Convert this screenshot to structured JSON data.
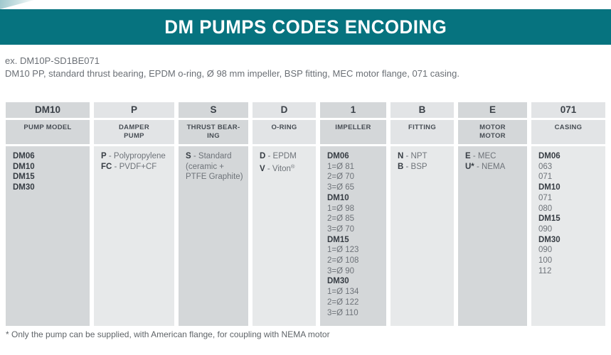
{
  "page": {
    "title": "DM PUMPS CODES ENCODING",
    "example_code": "ex. DM10P-SD1BE071",
    "example_description": "DM10 PP, standard thrust bearing, EPDM o-ring, Ø 98 mm impeller, BSP fitting, MEC motor flange, 071 casing.",
    "footnote": "* Only the pump can be supplied, with American flange, for coupling with NEMA motor"
  },
  "colors": {
    "accent_teal": "#06737f",
    "cell_dark": "#d4d7d9",
    "cell_light": "#e7e9ea",
    "wedge_teal": "#9fc8cd",
    "title_text": "#ffffff",
    "bold_text": "#373d44",
    "plain_text": "#6e7379"
  },
  "table": {
    "columns": [
      {
        "code": "DM10",
        "label_lines": [
          "PUMP MODEL"
        ],
        "items": [
          {
            "b": "DM06"
          },
          {
            "b": "DM10"
          },
          {
            "b": "DM15"
          },
          {
            "b": "DM30"
          }
        ]
      },
      {
        "code": "P",
        "label_lines": [
          "DAMPER",
          "PUMP"
        ],
        "items": [
          {
            "b": "P",
            "t": "Polypropylene"
          },
          {
            "b": "FC",
            "t": "PVDF+CF"
          }
        ]
      },
      {
        "code": "S",
        "label_lines": [
          "THRUST BEAR-",
          "ING"
        ],
        "items": [
          {
            "b": "S",
            "t": "Standard"
          },
          {
            "t": "(ceramic +"
          },
          {
            "t": "PTFE Graphite)"
          }
        ]
      },
      {
        "code": "D",
        "label_lines": [
          "O-RING"
        ],
        "items": [
          {
            "b": "D",
            "t": "EPDM"
          },
          {
            "b": "V",
            "t": "Viton®"
          }
        ]
      },
      {
        "code": "1",
        "label_lines": [
          "IMPELLER"
        ],
        "items": [
          {
            "b": "DM06"
          },
          {
            "t": "1=Ø 81"
          },
          {
            "t": "2=Ø 70"
          },
          {
            "t": "3=Ø 65"
          },
          {
            "b": "DM10"
          },
          {
            "t": "1=Ø 98"
          },
          {
            "t": "2=Ø 85"
          },
          {
            "t": "3=Ø 70"
          },
          {
            "b": "DM15"
          },
          {
            "t": "1=Ø 123"
          },
          {
            "t": "2=Ø 108"
          },
          {
            "t": "3=Ø 90"
          },
          {
            "b": "DM30"
          },
          {
            "t": "1=Ø 134"
          },
          {
            "t": "2=Ø 122"
          },
          {
            "t": "3=Ø 110"
          }
        ]
      },
      {
        "code": "B",
        "label_lines": [
          "FITTING"
        ],
        "items": [
          {
            "b": "N",
            "t": "NPT"
          },
          {
            "b": "B",
            "t": "BSP"
          }
        ]
      },
      {
        "code": "E",
        "label_lines": [
          "MOTOR",
          "MOTOR"
        ],
        "items": [
          {
            "b": "E",
            "t": "MEC"
          },
          {
            "b": "U*",
            "t": "NEMA"
          }
        ]
      },
      {
        "code": "071",
        "label_lines": [
          "CASING"
        ],
        "items": [
          {
            "b": "DM06"
          },
          {
            "t": "063"
          },
          {
            "t": "071"
          },
          {
            "b": "DM10"
          },
          {
            "t": "071"
          },
          {
            "t": "080"
          },
          {
            "b": "DM15"
          },
          {
            "t": "090"
          },
          {
            "b": "DM30"
          },
          {
            "t": "090"
          },
          {
            "t": "100"
          },
          {
            "t": "112"
          }
        ]
      }
    ]
  }
}
